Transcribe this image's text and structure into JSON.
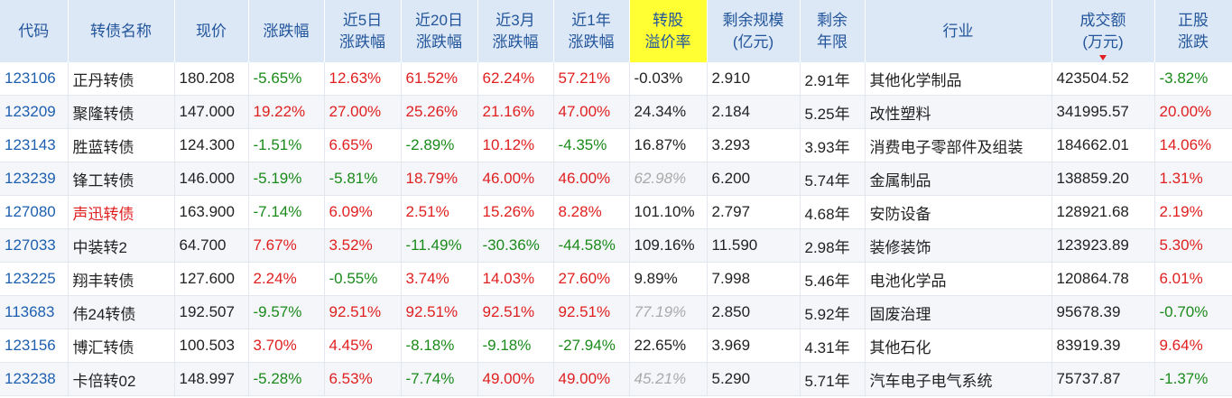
{
  "table": {
    "header": [
      [
        "代码"
      ],
      [
        "转债名称"
      ],
      [
        "现价"
      ],
      [
        "涨跌幅"
      ],
      [
        "近5日",
        "涨跌幅"
      ],
      [
        "近20日",
        "涨跌幅"
      ],
      [
        "近3月",
        "涨跌幅"
      ],
      [
        "近1年",
        "涨跌幅"
      ],
      [
        "转股",
        "溢价率"
      ],
      [
        "剩余规模",
        "(亿元)"
      ],
      [
        "剩余",
        "年限"
      ],
      [
        "行业"
      ],
      [
        "成交额",
        "(万元)"
      ],
      [
        "正股",
        "涨跌"
      ]
    ],
    "highlight_header_color": "#ffff33",
    "sorted_header_color": "#e02020",
    "up_color": "#e02020",
    "down_color": "#1a8a1a",
    "code_color": "#1d5fae",
    "rows": [
      {
        "cells": [
          "123106",
          "正丹转债",
          "180.208",
          "-5.65%",
          "12.63%",
          "61.52%",
          "62.24%",
          "57.21%",
          "-0.03%",
          "2.910",
          "2.91年",
          "其他化学制品",
          "423504.52",
          "-3.82%"
        ]
      },
      {
        "cells": [
          "123209",
          "聚隆转债",
          "147.000",
          "19.22%",
          "27.00%",
          "25.26%",
          "21.16%",
          "47.00%",
          "24.34%",
          "2.184",
          "5.25年",
          "改性塑料",
          "341995.57",
          "20.00%"
        ]
      },
      {
        "cells": [
          "123143",
          "胜蓝转债",
          "124.300",
          "-1.51%",
          "6.65%",
          "-2.89%",
          "10.12%",
          "-4.35%",
          "16.87%",
          "3.293",
          "3.93年",
          "消费电子零部件及组装",
          "184662.01",
          "14.06%"
        ]
      },
      {
        "cells": [
          "123239",
          "锋工转债",
          "146.000",
          "-5.19%",
          "-5.81%",
          "18.79%",
          "46.00%",
          "46.00%",
          "62.98%",
          "6.200",
          "5.74年",
          "金属制品",
          "138859.20",
          "1.31%"
        ],
        "premium_muted": true
      },
      {
        "cells": [
          "127080",
          "声迅转债",
          "163.900",
          "-7.14%",
          "6.09%",
          "2.51%",
          "15.26%",
          "8.28%",
          "101.10%",
          "2.797",
          "4.68年",
          "安防设备",
          "128921.68",
          "2.19%"
        ],
        "name_color": "#e02020"
      },
      {
        "cells": [
          "127033",
          "中装转2",
          "64.700",
          "7.67%",
          "3.52%",
          "-11.49%",
          "-30.36%",
          "-44.58%",
          "109.16%",
          "11.590",
          "2.98年",
          "装修装饰",
          "123923.89",
          "5.30%"
        ]
      },
      {
        "cells": [
          "123225",
          "翔丰转债",
          "127.600",
          "2.24%",
          "-0.55%",
          "3.74%",
          "14.03%",
          "27.60%",
          "9.89%",
          "7.998",
          "5.46年",
          "电池化学品",
          "120864.78",
          "6.01%"
        ]
      },
      {
        "cells": [
          "113683",
          "伟24转债",
          "192.507",
          "-9.57%",
          "92.51%",
          "92.51%",
          "92.51%",
          "92.51%",
          "77.19%",
          "2.850",
          "5.92年",
          "固废治理",
          "95678.39",
          "-0.70%"
        ],
        "premium_muted": true
      },
      {
        "cells": [
          "123156",
          "博汇转债",
          "100.503",
          "3.70%",
          "4.45%",
          "-8.18%",
          "-9.18%",
          "-27.94%",
          "22.65%",
          "3.969",
          "4.31年",
          "其他石化",
          "83919.39",
          "9.64%"
        ]
      },
      {
        "cells": [
          "123238",
          "卡倍转02",
          "148.997",
          "-5.28%",
          "6.53%",
          "-7.74%",
          "49.00%",
          "49.00%",
          "45.21%",
          "5.290",
          "5.71年",
          "汽车电子电气系统",
          "75737.87",
          "-1.37%"
        ],
        "premium_muted": true
      }
    ]
  }
}
